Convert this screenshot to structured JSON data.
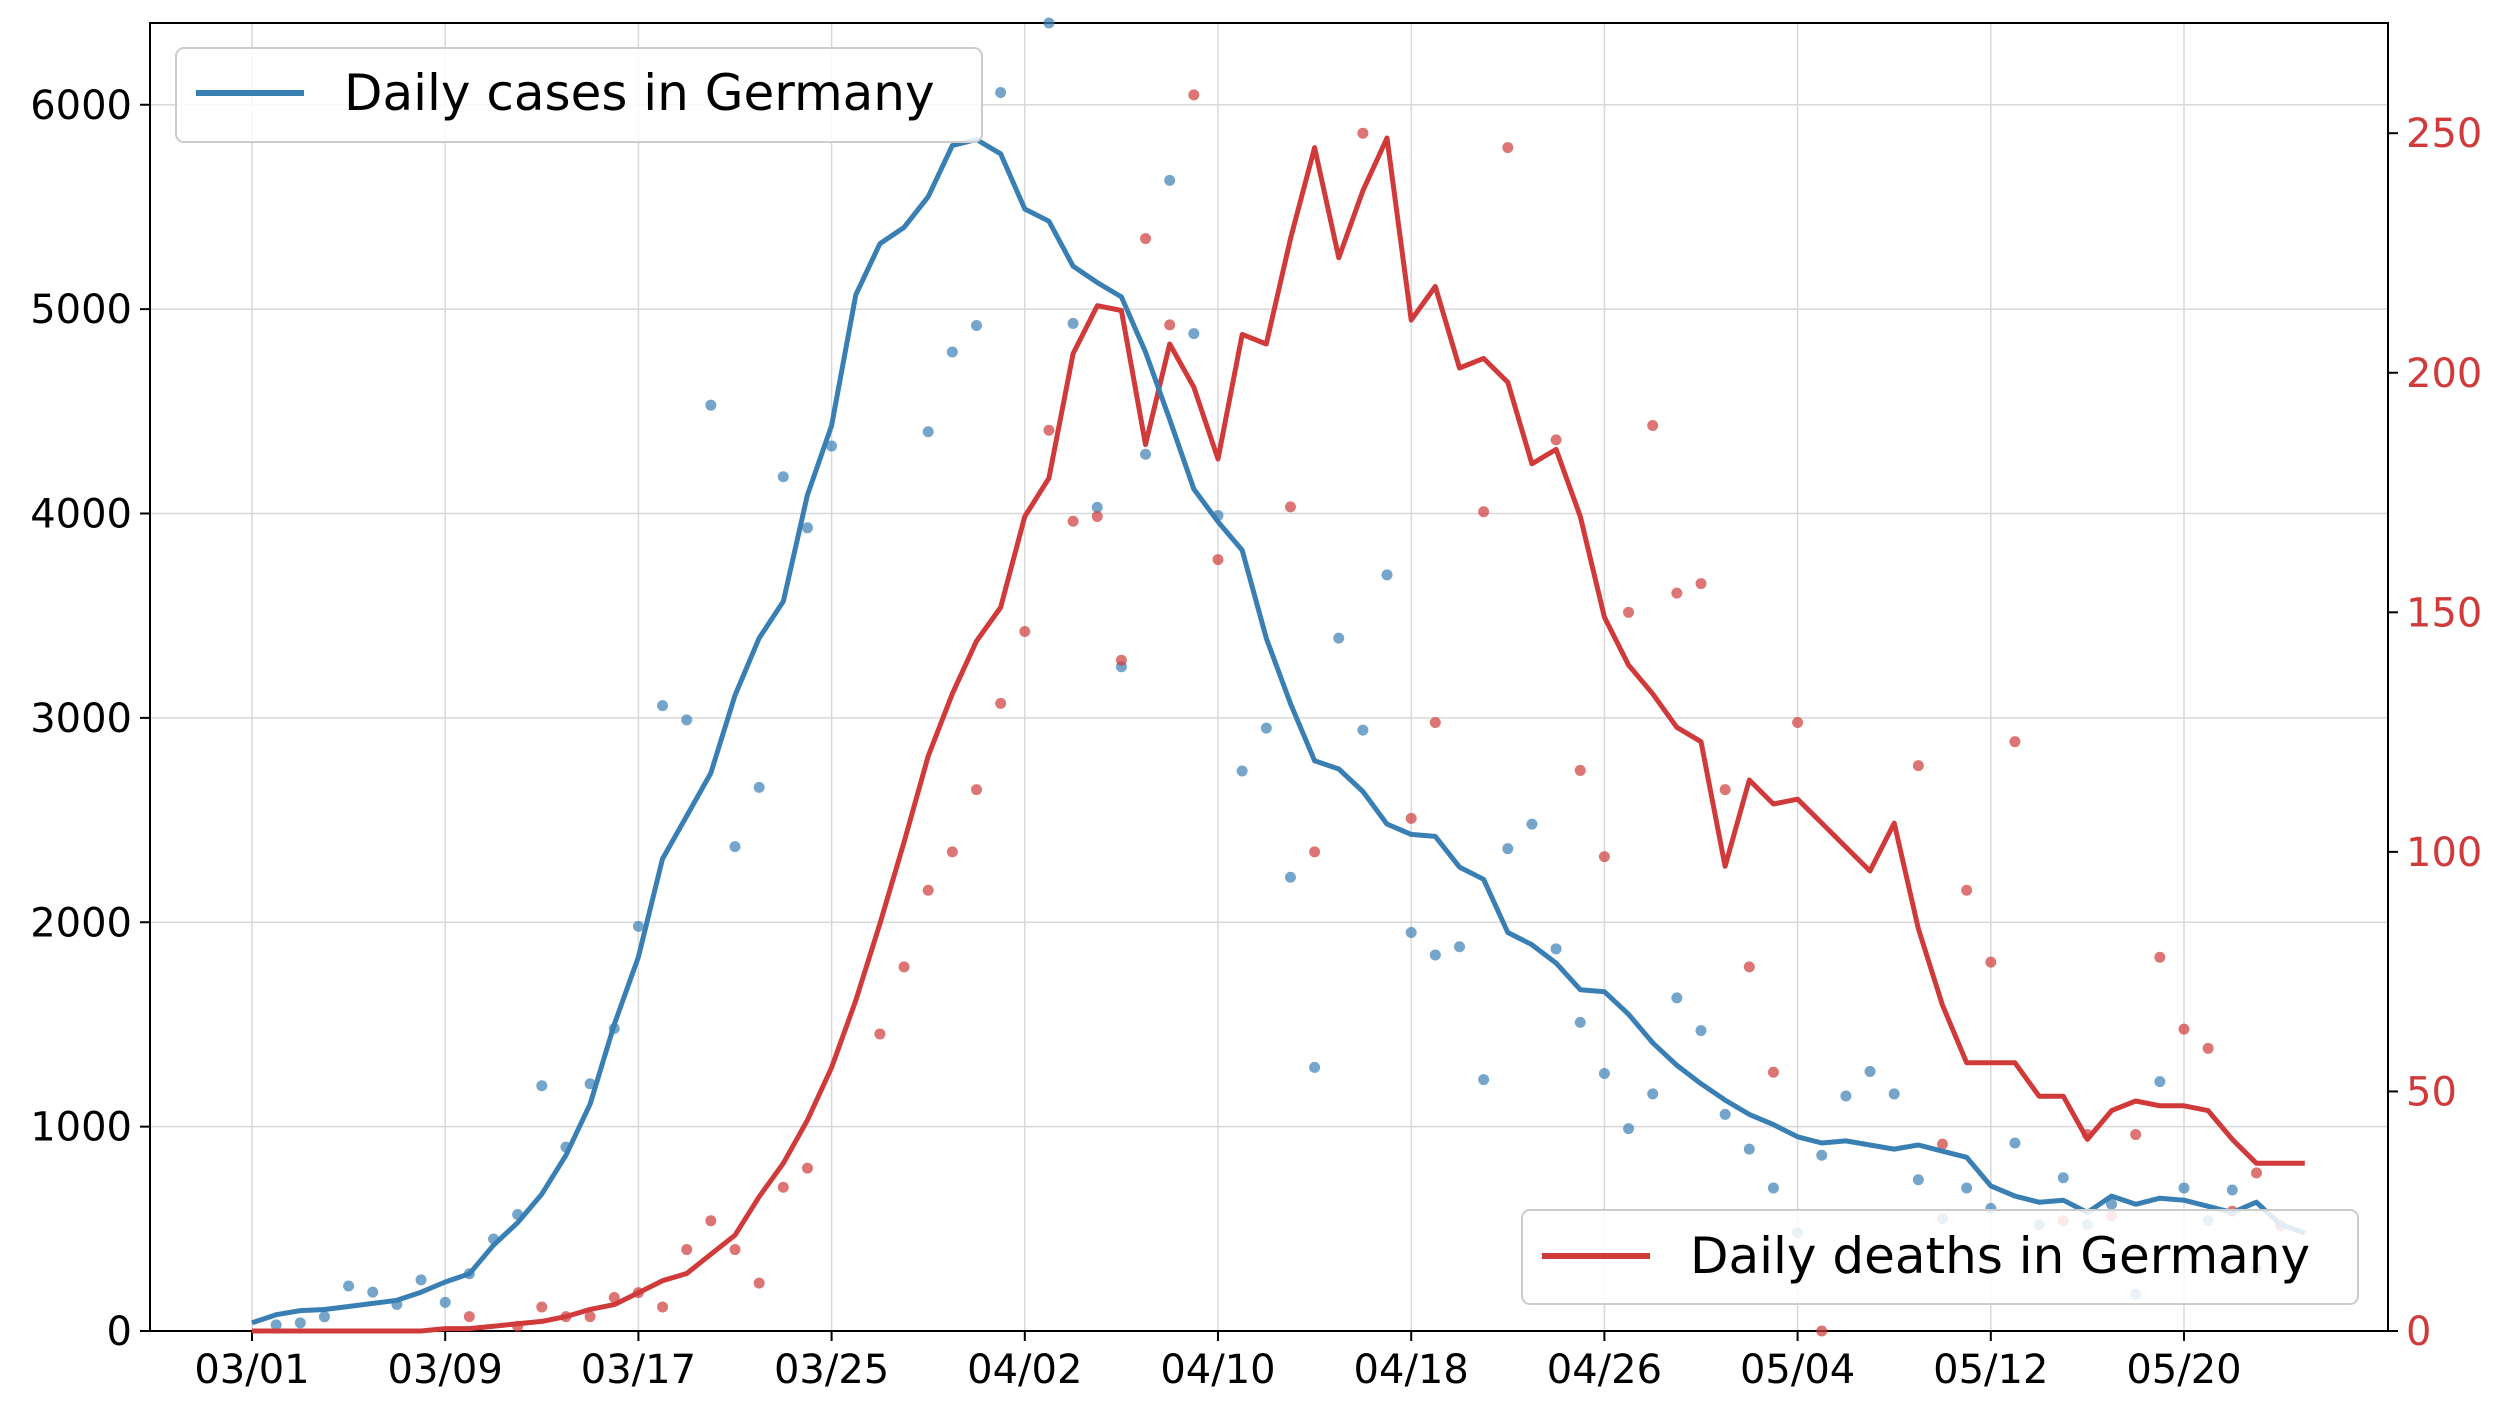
{
  "chart_data": {
    "type": "line",
    "title": "",
    "xlabel": "",
    "ylabel": "",
    "x_start": "03/01",
    "x_ticks": [
      "03/01",
      "03/09",
      "03/17",
      "03/25",
      "04/02",
      "04/10",
      "04/18",
      "04/26",
      "05/04",
      "05/12",
      "05/20"
    ],
    "grid": true,
    "legend_cases": "Daily cases in Germany",
    "legend_deaths": "Daily deaths in Germany",
    "legend_cases_placement": "top-left",
    "legend_deaths_placement": "bottom-right",
    "cases_color": "#3a7fb3",
    "deaths_color": "#d03a3a",
    "y_left": {
      "ylim": [
        0,
        6400
      ],
      "ticks": [
        0,
        1000,
        2000,
        3000,
        4000,
        5000,
        6000
      ]
    },
    "y_right": {
      "ylim": [
        0,
        273
      ],
      "ticks": [
        0,
        50,
        100,
        150,
        200,
        250
      ]
    },
    "series": [
      {
        "name": "Daily cases in Germany",
        "axis": "left",
        "kind": "smoothed-line",
        "values": [
          40,
          80,
          100,
          105,
          120,
          135,
          150,
          190,
          240,
          280,
          420,
          530,
          670,
          860,
          1110,
          1500,
          1830,
          2310,
          2520,
          2730,
          3110,
          3390,
          3570,
          4090,
          4430,
          5070,
          5320,
          5400,
          5550,
          5800,
          5830,
          5760,
          5490,
          5430,
          5210,
          5130,
          5060,
          4790,
          4460,
          4120,
          3960,
          3820,
          3390,
          3070,
          2790,
          2750,
          2640,
          2480,
          2430,
          2420,
          2270,
          2210,
          1950,
          1890,
          1800,
          1670,
          1660,
          1550,
          1410,
          1300,
          1210,
          1130,
          1060,
          1010,
          950,
          920,
          930,
          910,
          890,
          910,
          880,
          850,
          710,
          660,
          630,
          640,
          580,
          660,
          620,
          650,
          640,
          610,
          580,
          630,
          520,
          480
        ]
      },
      {
        "name": "Daily cases in Germany",
        "axis": "left",
        "kind": "daily-points",
        "values": [
          null,
          30,
          40,
          70,
          220,
          190,
          130,
          250,
          140,
          280,
          450,
          570,
          1200,
          900,
          1210,
          1480,
          1980,
          3060,
          2990,
          4530,
          2370,
          2660,
          4180,
          3930,
          4330,
          null,
          null,
          null,
          4400,
          4790,
          4920,
          6060,
          null,
          6400,
          4930,
          4030,
          3250,
          4290,
          5630,
          4880,
          3990,
          2740,
          2950,
          2220,
          1290,
          3390,
          2940,
          3700,
          1950,
          1840,
          1880,
          1230,
          2360,
          2480,
          1870,
          1510,
          1260,
          990,
          1160,
          1630,
          1470,
          1060,
          890,
          700,
          480,
          860,
          1150,
          1270,
          1160,
          740,
          550,
          700,
          600,
          920,
          520,
          750,
          520,
          620,
          180,
          1220,
          700,
          540,
          690,
          300,
          null,
          null
        ]
      },
      {
        "name": "Daily deaths in Germany",
        "axis": "right",
        "kind": "smoothed-line",
        "values": [
          0,
          0,
          0,
          0,
          0,
          0,
          0,
          0,
          0.5,
          0.5,
          1,
          1.5,
          2,
          3,
          4.5,
          5.5,
          8,
          10.5,
          12,
          16,
          20,
          28,
          35,
          44,
          55,
          69,
          85,
          102,
          120,
          133,
          144,
          151,
          170,
          178,
          204,
          214,
          213,
          185,
          206,
          197,
          182,
          208,
          206,
          228,
          247,
          224,
          238,
          249,
          211,
          218,
          201,
          203,
          198,
          181,
          184,
          170,
          149,
          139,
          133,
          126,
          123,
          97,
          115,
          110,
          111,
          106,
          101,
          96,
          106,
          84,
          68,
          56,
          56,
          56,
          49,
          49,
          40,
          46,
          48,
          47,
          47,
          46,
          40,
          35,
          35,
          35
        ]
      },
      {
        "name": "Daily deaths in Germany",
        "axis": "right",
        "kind": "daily-points",
        "values": [
          null,
          null,
          null,
          null,
          null,
          null,
          null,
          null,
          null,
          3,
          null,
          1,
          5,
          3,
          3,
          7,
          8,
          5,
          17,
          23,
          17,
          10,
          30,
          34,
          null,
          null,
          62,
          76,
          92,
          100,
          113,
          131,
          146,
          188,
          169,
          170,
          140,
          228,
          210,
          258,
          161,
          null,
          null,
          172,
          100,
          null,
          250,
          null,
          107,
          127,
          null,
          171,
          247,
          null,
          186,
          117,
          99,
          150,
          189,
          154,
          156,
          113,
          76,
          54,
          127,
          0,
          null,
          null,
          null,
          118,
          39,
          92,
          77,
          123,
          null,
          23,
          41,
          24,
          41,
          78,
          63,
          59,
          25,
          33,
          22,
          null
        ]
      }
    ]
  }
}
